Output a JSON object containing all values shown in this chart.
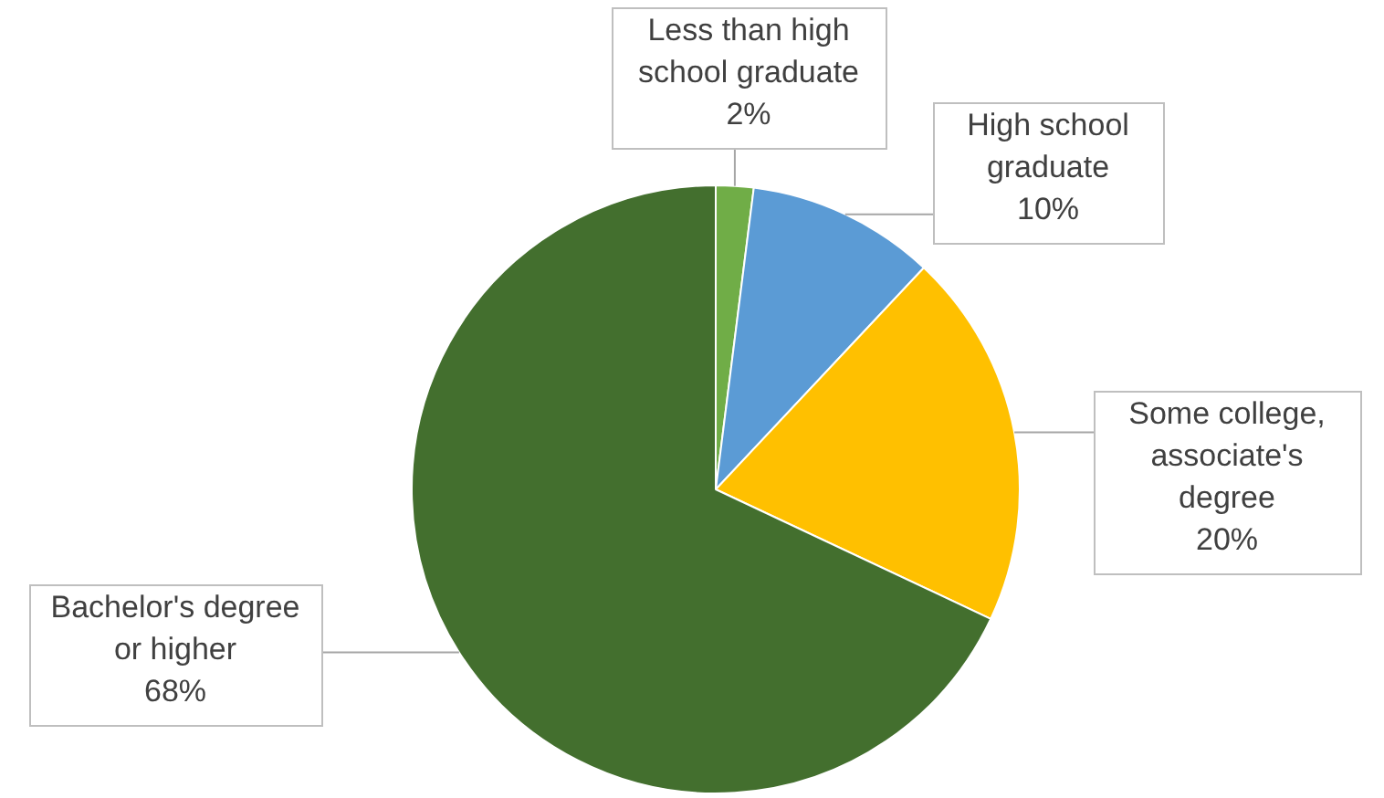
{
  "chart_data": {
    "type": "pie",
    "categories": [
      "Less than high school graduate",
      "High school graduate",
      "Some college, associate's degree",
      "Bachelor's degree or higher"
    ],
    "values": [
      2,
      10,
      20,
      68
    ],
    "colors": [
      "#70ad47",
      "#5b9bd5",
      "#ffc000",
      "#436f2e"
    ],
    "value_labels": [
      "2%",
      "10%",
      "20%",
      "68%"
    ],
    "legend": false
  }
}
